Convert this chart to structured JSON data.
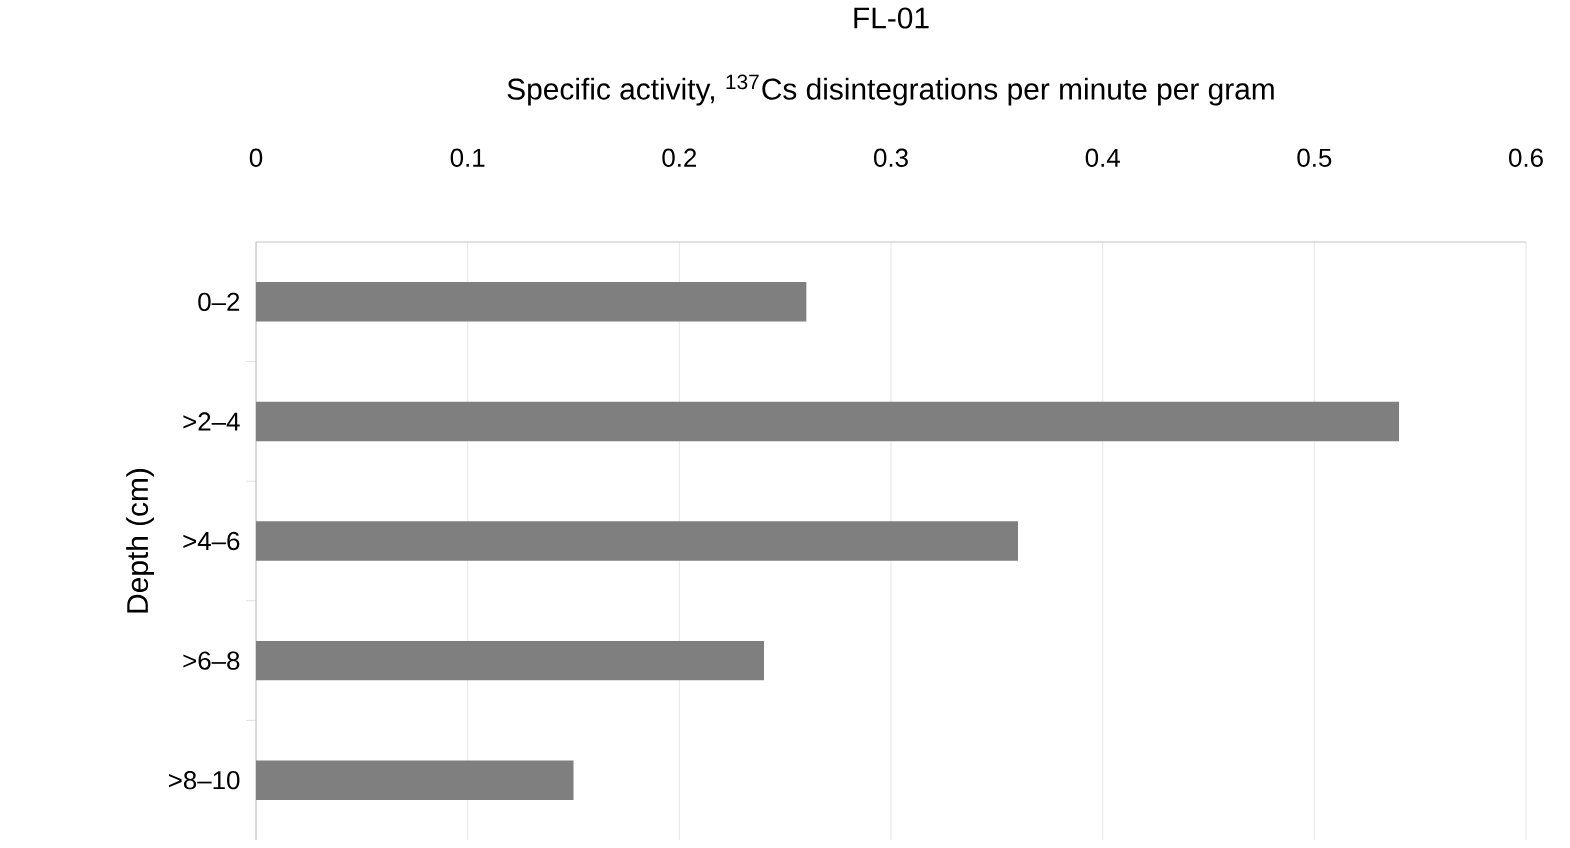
{
  "chart_data": {
    "type": "bar",
    "orientation": "horizontal",
    "title": "FL-01",
    "xlabel": "Specific activity, $^{137}$Cs disintegrations per minute per gram",
    "ylabel": "Depth (cm)",
    "categories": [
      "0–2",
      ">2–4",
      ">4–6",
      ">6–8",
      ">8–10"
    ],
    "values": [
      0.26,
      0.54,
      0.36,
      0.24,
      0.15
    ],
    "color": "#7f7f7f",
    "xlim": [
      0,
      0.6
    ],
    "xticks": [
      0,
      0.1,
      0.2,
      0.3,
      0.4,
      0.5,
      0.6
    ],
    "grid": "x"
  }
}
